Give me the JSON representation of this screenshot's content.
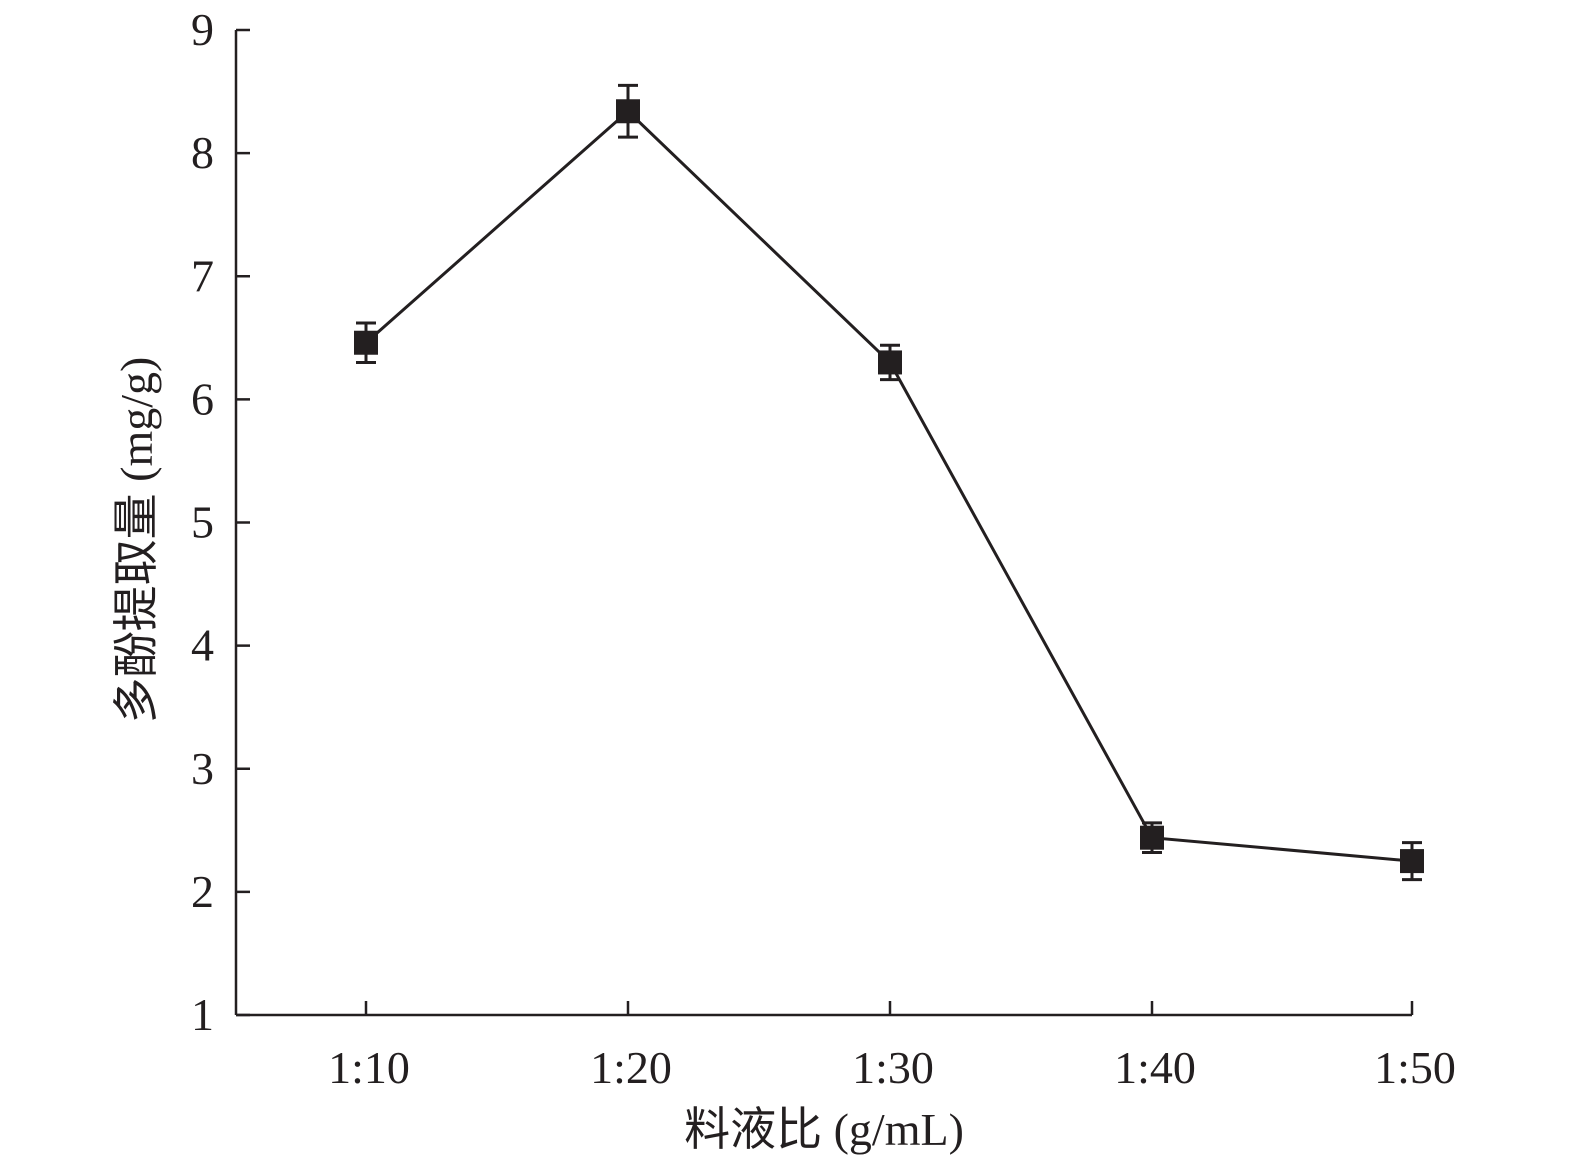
{
  "chart_data": {
    "type": "line",
    "categories": [
      "1:10",
      "1:20",
      "1:30",
      "1:40",
      "1:50"
    ],
    "series": [
      {
        "values": [
          6.46,
          8.34,
          6.3,
          2.44,
          2.25
        ],
        "errors": [
          0.16,
          0.21,
          0.14,
          0.12,
          0.15
        ],
        "marker": "square",
        "color": "#231f20"
      }
    ],
    "xlabel": "料液比 (g/mL)",
    "ylabel": "多酚提取量 (mg/g)",
    "ylim": [
      1,
      9
    ],
    "yticks": [
      1,
      2,
      3,
      4,
      5,
      6,
      7,
      8,
      9
    ],
    "grid": false
  }
}
